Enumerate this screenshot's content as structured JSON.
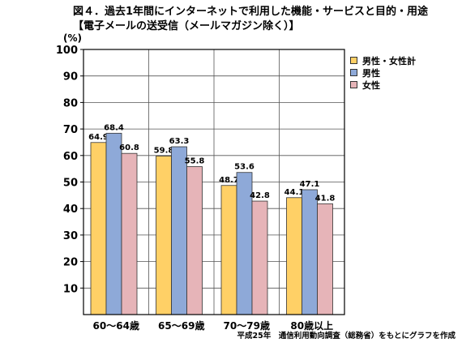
{
  "title_line1": "図４．過去1年間にインターネットで利用した機能・サービスと目的・用途",
  "title_line2": "【電子メールの送受信（メールマガジン除く）】",
  "unit": "(%)",
  "source_note": "平成25年　通信利用動向調査（総務省）をもとにグラフを作成",
  "colors": {
    "total": "#FFD066",
    "male": "#8EA9D8",
    "female": "#E6B4B8"
  },
  "chart_data": {
    "type": "bar",
    "categories": [
      "60〜64歳",
      "65〜69歳",
      "70〜79歳",
      "80歳以上"
    ],
    "series": [
      {
        "name": "男性・女性計",
        "values": [
          64.9,
          59.8,
          48.7,
          44.1
        ],
        "labels": [
          "64.9",
          "59.8",
          "48.7",
          "44.1"
        ]
      },
      {
        "name": "男性",
        "values": [
          68.4,
          63.3,
          53.6,
          47.1
        ],
        "labels": [
          "68.4",
          "63.3",
          "53.6",
          "47.1"
        ]
      },
      {
        "name": "女性",
        "values": [
          60.8,
          55.8,
          42.8,
          41.8
        ],
        "labels": [
          "60.8",
          "55.8",
          "42.8",
          "41.8"
        ]
      }
    ],
    "ylim": [
      0,
      100
    ],
    "yticks": [
      "10",
      "20",
      "30",
      "40",
      "50",
      "60",
      "70",
      "80",
      "90",
      "100"
    ],
    "grid": true,
    "legend_position": "top-right"
  }
}
